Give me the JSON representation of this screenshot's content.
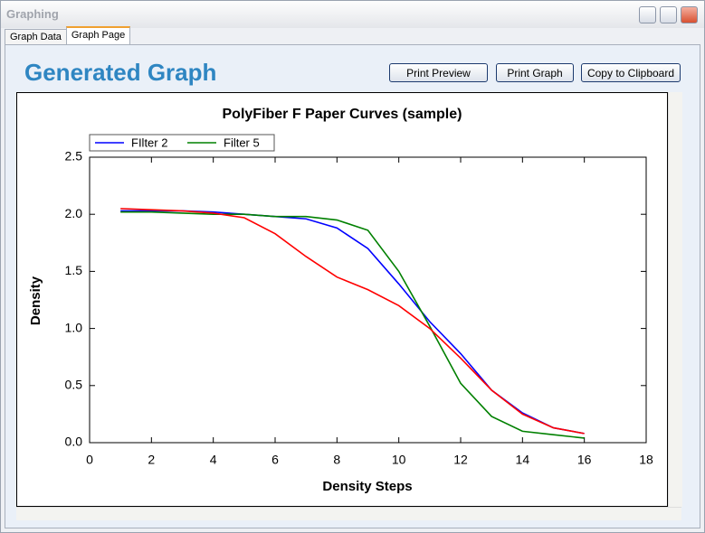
{
  "window": {
    "title": "Graphing",
    "tabs": [
      "Graph Data",
      "Graph Page"
    ],
    "heading": "Generated Graph",
    "buttons": [
      "Print Preview",
      "Print Graph",
      "Copy to Clipboard"
    ]
  },
  "chart_data": {
    "type": "line",
    "title": "PolyFiber F Paper Curves (sample)",
    "x_label": "Density Steps",
    "y_label": "Density",
    "x": [
      1,
      2,
      3,
      4,
      5,
      6,
      7,
      8,
      9,
      10,
      11,
      12,
      13,
      14,
      15,
      16
    ],
    "series": [
      {
        "name": "FIlter 2",
        "color": "#0000ff",
        "values": [
          2.03,
          2.03,
          2.03,
          2.02,
          2.0,
          1.98,
          1.96,
          1.88,
          1.7,
          1.39,
          1.06,
          0.78,
          0.46,
          0.26,
          0.13,
          0.08
        ]
      },
      {
        "name": "Filter 5",
        "color": "#008000",
        "values": [
          2.02,
          2.02,
          2.01,
          2.0,
          2.0,
          1.98,
          1.98,
          1.95,
          1.86,
          1.5,
          1.02,
          0.52,
          0.23,
          0.1,
          0.07,
          0.04
        ]
      },
      {
        "color": "#ff0000",
        "values": [
          2.05,
          2.04,
          2.03,
          2.01,
          1.97,
          1.83,
          1.63,
          1.45,
          1.34,
          1.2,
          1.0,
          0.74,
          0.46,
          0.25,
          0.13,
          0.08
        ]
      }
    ],
    "xlim": [
      0,
      18
    ],
    "xticks": [
      0,
      2,
      4,
      6,
      8,
      10,
      12,
      14,
      16,
      18
    ],
    "ylim": [
      0,
      2.5
    ],
    "yticks": [
      {
        "value": 0,
        "label": "0.0"
      },
      0.5,
      {
        "value": 1,
        "label": "1.0"
      },
      1.5,
      {
        "value": 2,
        "label": "2.0"
      },
      2.5
    ],
    "grid": false,
    "legend": "upper left"
  }
}
